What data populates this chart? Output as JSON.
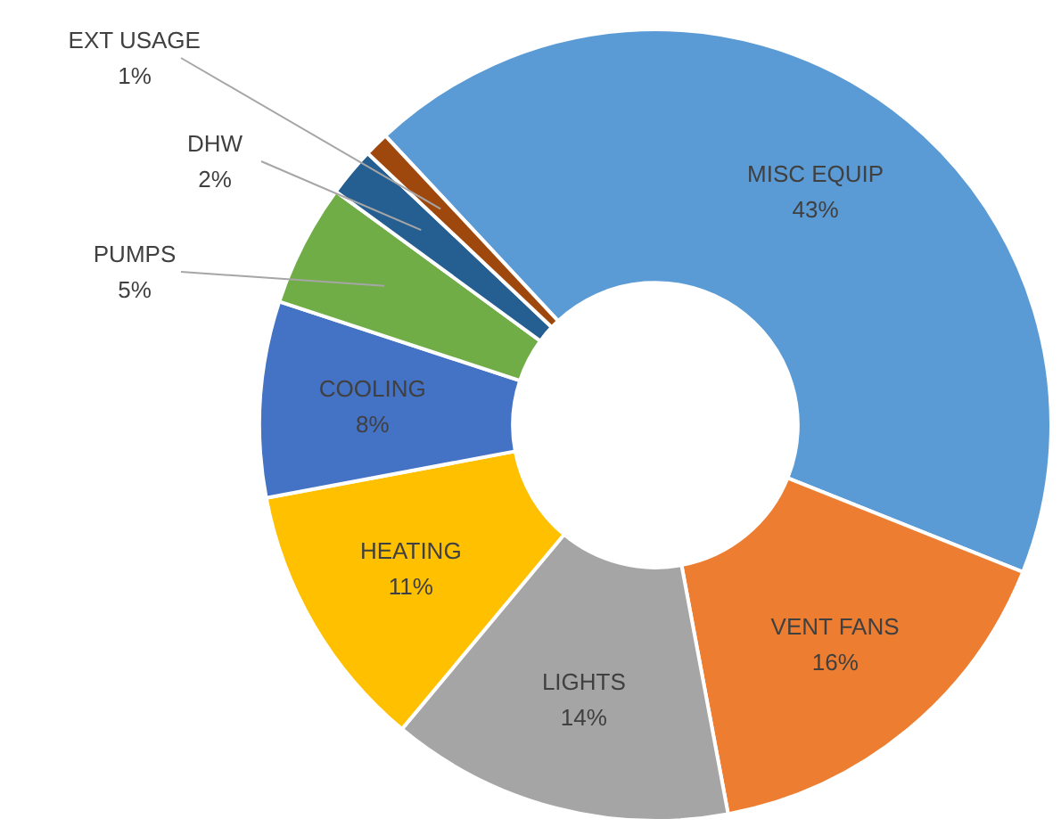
{
  "chart_data": {
    "type": "donut",
    "categories": [
      "MISC EQUIP",
      "VENT FANS",
      "LIGHTS",
      "HEATING",
      "COOLING",
      "PUMPS",
      "DHW",
      "EXT USAGE"
    ],
    "values": [
      43,
      16,
      14,
      11,
      8,
      5,
      2,
      1
    ],
    "colors": [
      "#5b9bd5",
      "#ed7d31",
      "#a5a5a5",
      "#ffc000",
      "#4472c4",
      "#70ad47",
      "#255e91",
      "#9e480e"
    ],
    "value_labels": [
      "43%",
      "16%",
      "14%",
      "11%",
      "8%",
      "5%",
      "2%",
      "1%"
    ]
  }
}
